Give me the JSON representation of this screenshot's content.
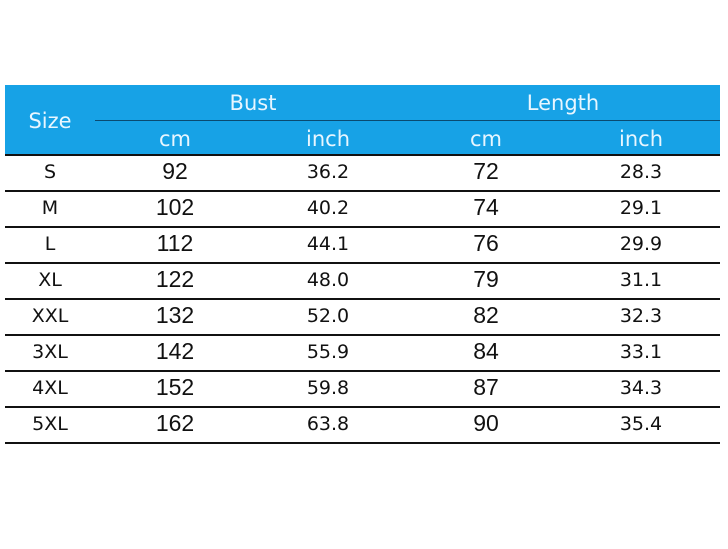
{
  "header": {
    "size": "Size",
    "bust": "Bust",
    "length": "Length",
    "bust_cm": "cm",
    "bust_inch": "inch",
    "length_cm": "cm",
    "length_inch": "inch"
  },
  "colors": {
    "header_bg": "#17a2e6"
  },
  "rows": [
    [
      "S",
      "92",
      "36.2",
      "72",
      "28.3"
    ],
    [
      "M",
      "102",
      "40.2",
      "74",
      "29.1"
    ],
    [
      "L",
      "112",
      "44.1",
      "76",
      "29.9"
    ],
    [
      "XL",
      "122",
      "48.0",
      "79",
      "31.1"
    ],
    [
      "XXL",
      "132",
      "52.0",
      "82",
      "32.3"
    ],
    [
      "3XL",
      "142",
      "55.9",
      "84",
      "33.1"
    ],
    [
      "4XL",
      "152",
      "59.8",
      "87",
      "34.3"
    ],
    [
      "5XL",
      "162",
      "63.8",
      "90",
      "35.4"
    ]
  ]
}
